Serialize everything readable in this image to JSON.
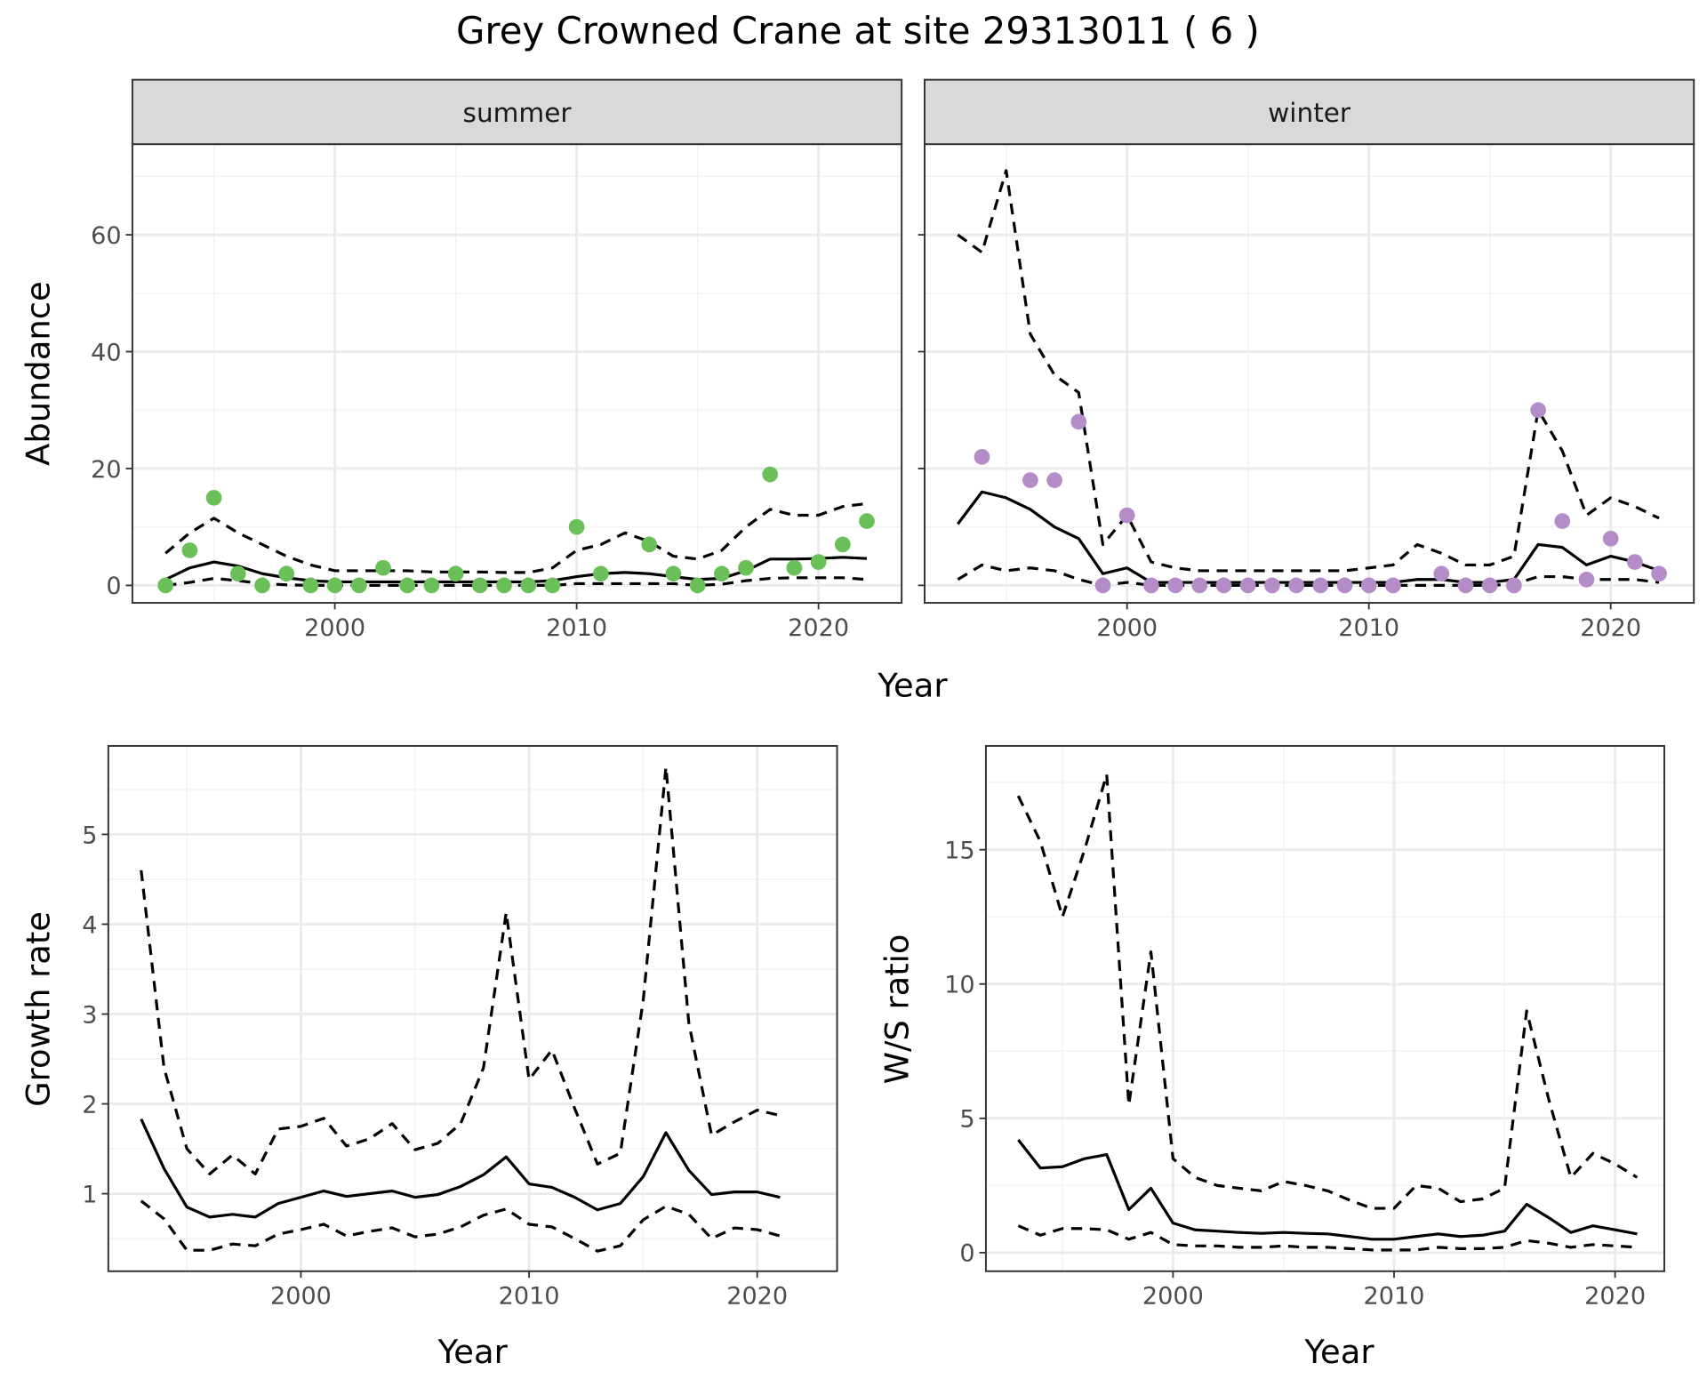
{
  "title": "Grey Crowned Crane at site 29313011 ( 6 )",
  "colors": {
    "summer_points": "#6abf59",
    "winter_points": "#b48cc8",
    "line": "#000000",
    "strip_bg": "#d9d9d9",
    "grid": "#ebebeb"
  },
  "chart_data": [
    {
      "type": "line",
      "facet": "summer",
      "xlabel": "Year",
      "ylabel": "Abundance",
      "xlim": [
        1991.6,
        2023.4
      ],
      "ylim": [
        -3,
        75
      ],
      "xticks": [
        "2000",
        "2010",
        "2020"
      ],
      "yticks": [
        "0",
        "20",
        "40",
        "60"
      ],
      "x": [
        1993,
        1994,
        1995,
        1996,
        1997,
        1998,
        1999,
        2000,
        2001,
        2002,
        2003,
        2004,
        2005,
        2006,
        2007,
        2008,
        2009,
        2010,
        2011,
        2012,
        2013,
        2014,
        2015,
        2016,
        2017,
        2018,
        2019,
        2020,
        2021,
        2022
      ],
      "points": [
        0,
        6,
        15,
        2,
        0,
        2,
        0,
        0,
        0,
        3,
        0,
        0,
        2,
        0,
        0,
        0,
        0,
        10,
        2,
        null,
        7,
        2,
        0,
        2,
        3,
        19,
        3,
        4,
        7,
        11
      ],
      "series": [
        {
          "name": "mean",
          "style": "solid",
          "values": [
            1,
            3,
            4,
            3.3,
            2,
            1.3,
            0.8,
            0.6,
            0.6,
            0.6,
            0.6,
            0.6,
            0.6,
            0.6,
            0.6,
            0.6,
            0.8,
            1.5,
            2,
            2.2,
            2,
            1.5,
            1,
            1.2,
            2.5,
            4.5,
            4.5,
            4.6,
            4.8,
            4.6
          ]
        },
        {
          "name": "upper",
          "style": "dashed",
          "values": [
            5.5,
            9,
            11.5,
            9,
            7,
            5,
            3.5,
            2.5,
            2.5,
            2.5,
            2.5,
            2.3,
            2.3,
            2.3,
            2.2,
            2.2,
            3,
            6,
            7,
            9,
            7.5,
            5,
            4.5,
            6,
            10,
            13,
            12,
            12,
            13.5,
            14
          ]
        },
        {
          "name": "lower",
          "style": "dashed",
          "values": [
            0,
            0.5,
            1.2,
            0.8,
            0.3,
            0.1,
            0,
            0,
            0,
            0,
            0,
            0,
            0,
            0,
            0,
            0,
            0,
            0.3,
            0.3,
            0.3,
            0.3,
            0.3,
            0,
            0.2,
            0.8,
            1.2,
            1.3,
            1.3,
            1.3,
            1
          ]
        }
      ]
    },
    {
      "type": "line",
      "facet": "winter",
      "xlabel": "Year",
      "ylabel": "Abundance",
      "xlim": [
        1991.6,
        2023.4
      ],
      "ylim": [
        -3,
        75
      ],
      "xticks": [
        "2000",
        "2010",
        "2020"
      ],
      "yticks": [
        "0",
        "20",
        "40",
        "60"
      ],
      "x": [
        1993,
        1994,
        1995,
        1996,
        1997,
        1998,
        1999,
        2000,
        2001,
        2002,
        2003,
        2004,
        2005,
        2006,
        2007,
        2008,
        2009,
        2010,
        2011,
        2012,
        2013,
        2014,
        2015,
        2016,
        2017,
        2018,
        2019,
        2020,
        2021,
        2022
      ],
      "points": [
        null,
        22,
        null,
        18,
        18,
        28,
        0,
        12,
        0,
        0,
        0,
        0,
        0,
        0,
        0,
        0,
        0,
        0,
        0,
        null,
        2,
        0,
        0,
        0,
        30,
        11,
        1,
        8,
        4,
        2
      ],
      "series": [
        {
          "name": "mean",
          "style": "solid",
          "values": [
            10.5,
            16,
            15,
            13,
            10,
            8,
            2,
            3,
            0.5,
            0.5,
            0.5,
            0.5,
            0.5,
            0.5,
            0.5,
            0.5,
            0.5,
            0.5,
            0.5,
            1,
            1,
            0.5,
            0.5,
            1,
            7,
            6.5,
            3.5,
            5,
            4,
            2.5
          ]
        },
        {
          "name": "upper",
          "style": "dashed",
          "values": [
            60,
            57,
            71,
            43,
            36,
            33,
            7,
            12,
            4,
            3,
            2.5,
            2.5,
            2.5,
            2.5,
            2.5,
            2.5,
            2.5,
            3,
            3.5,
            7,
            5.5,
            3.5,
            3.5,
            5,
            30,
            23,
            12,
            15,
            13.5,
            11.5
          ]
        },
        {
          "name": "lower",
          "style": "dashed",
          "values": [
            1,
            3.5,
            2.5,
            3,
            2.5,
            1,
            0,
            0.5,
            0,
            0,
            0,
            0,
            0,
            0,
            0,
            0,
            0,
            0,
            0,
            0,
            0,
            0,
            0,
            0.2,
            1.5,
            1.5,
            1,
            1,
            1,
            0.5
          ]
        }
      ]
    },
    {
      "type": "line",
      "xlabel": "Year",
      "ylabel": "Growth rate",
      "xlim": [
        1991.6,
        2022.5
      ],
      "ylim": [
        0.1,
        5.95
      ],
      "xticks": [
        "2000",
        "2010",
        "2020"
      ],
      "yticks": [
        "1",
        "2",
        "3",
        "4",
        "5"
      ],
      "x": [
        1993,
        1994,
        1995,
        1996,
        1997,
        1998,
        1999,
        2000,
        2001,
        2002,
        2003,
        2004,
        2005,
        2006,
        2007,
        2008,
        2009,
        2010,
        2011,
        2012,
        2013,
        2014,
        2015,
        2016,
        2017,
        2018,
        2019,
        2020,
        2021
      ],
      "series": [
        {
          "name": "mean",
          "style": "solid",
          "values": [
            1.83,
            1.28,
            0.85,
            0.74,
            0.77,
            0.74,
            0.89,
            0.96,
            1.03,
            0.97,
            1.0,
            1.03,
            0.96,
            0.99,
            1.08,
            1.21,
            1.41,
            1.11,
            1.07,
            0.96,
            0.82,
            0.89,
            1.19,
            1.68,
            1.26,
            0.99,
            1.02,
            1.02,
            0.96
          ]
        },
        {
          "name": "upper",
          "style": "dashed",
          "values": [
            4.6,
            2.4,
            1.5,
            1.22,
            1.43,
            1.22,
            1.72,
            1.75,
            1.84,
            1.53,
            1.61,
            1.78,
            1.49,
            1.56,
            1.78,
            2.4,
            4.13,
            2.27,
            2.6,
            1.95,
            1.33,
            1.45,
            3.15,
            5.75,
            2.9,
            1.65,
            1.8,
            1.93,
            1.87
          ]
        },
        {
          "name": "lower",
          "style": "dashed",
          "values": [
            0.92,
            0.72,
            0.37,
            0.37,
            0.44,
            0.42,
            0.55,
            0.6,
            0.66,
            0.53,
            0.58,
            0.62,
            0.52,
            0.55,
            0.63,
            0.76,
            0.83,
            0.66,
            0.63,
            0.5,
            0.36,
            0.42,
            0.71,
            0.86,
            0.77,
            0.5,
            0.62,
            0.6,
            0.53
          ]
        }
      ]
    },
    {
      "type": "line",
      "xlabel": "Year",
      "ylabel": "W/S ratio",
      "xlim": [
        1991.6,
        2022.2
      ],
      "ylim": [
        -0.6,
        18.6
      ],
      "xticks": [
        "2000",
        "2010",
        "2020"
      ],
      "yticks": [
        "0",
        "5",
        "10",
        "15"
      ],
      "x": [
        1993,
        1994,
        1995,
        1996,
        1997,
        1998,
        1999,
        2000,
        2001,
        2002,
        2003,
        2004,
        2005,
        2006,
        2007,
        2008,
        2009,
        2010,
        2011,
        2012,
        2013,
        2014,
        2015,
        2016,
        2017,
        2018,
        2019,
        2020,
        2021
      ],
      "series": [
        {
          "name": "mean",
          "style": "solid",
          "values": [
            4.2,
            3.15,
            3.2,
            3.5,
            3.65,
            1.6,
            2.4,
            1.1,
            0.85,
            0.8,
            0.75,
            0.72,
            0.75,
            0.72,
            0.7,
            0.6,
            0.5,
            0.5,
            0.6,
            0.7,
            0.6,
            0.65,
            0.8,
            1.8,
            1.3,
            0.75,
            1.0,
            0.85,
            0.7
          ]
        },
        {
          "name": "upper",
          "style": "dashed",
          "values": [
            17,
            15.3,
            12.5,
            15,
            17.8,
            5.5,
            11.2,
            3.5,
            2.8,
            2.5,
            2.4,
            2.3,
            2.65,
            2.5,
            2.3,
            1.95,
            1.65,
            1.65,
            2.5,
            2.4,
            1.9,
            2.0,
            2.4,
            9.0,
            5.7,
            2.8,
            3.7,
            3.3,
            2.8
          ]
        },
        {
          "name": "lower",
          "style": "dashed",
          "values": [
            1.0,
            0.65,
            0.9,
            0.9,
            0.85,
            0.5,
            0.75,
            0.3,
            0.25,
            0.25,
            0.2,
            0.2,
            0.25,
            0.2,
            0.2,
            0.15,
            0.1,
            0.1,
            0.1,
            0.2,
            0.15,
            0.15,
            0.2,
            0.45,
            0.35,
            0.2,
            0.3,
            0.25,
            0.2
          ]
        }
      ]
    }
  ]
}
